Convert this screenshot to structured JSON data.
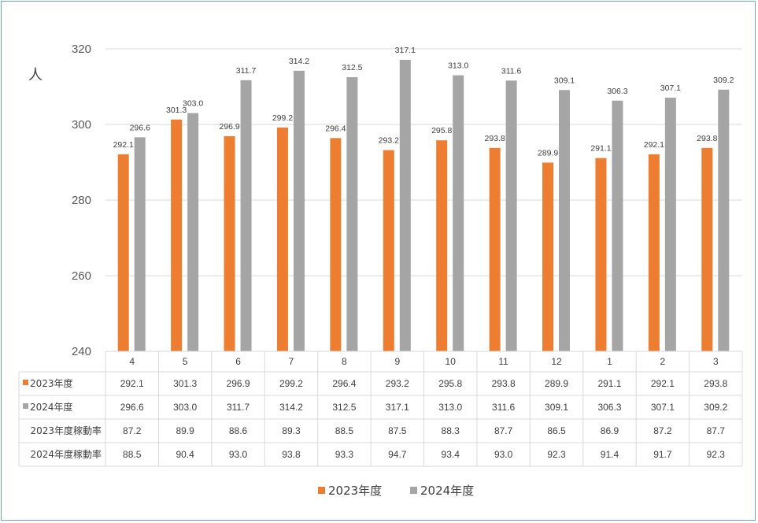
{
  "chart_data": {
    "type": "bar",
    "ylabel": "人",
    "ylim": [
      240,
      320
    ],
    "yticks": [
      240,
      260,
      280,
      300,
      320
    ],
    "grid": true,
    "categories": [
      "4",
      "5",
      "6",
      "7",
      "8",
      "9",
      "10",
      "11",
      "12",
      "1",
      "2",
      "3"
    ],
    "series": [
      {
        "name": "2023年度",
        "color": "#ed7d31",
        "values": [
          292.1,
          301.3,
          296.9,
          299.2,
          296.4,
          293.2,
          295.8,
          293.8,
          289.9,
          291.1,
          292.1,
          293.8
        ],
        "value_labels": [
          "292.1",
          "301.3",
          "296.9",
          "299.2",
          "296.4",
          "293.2",
          "295.8",
          "293.8",
          "289.9",
          "291.1",
          "292.1",
          "293.8"
        ]
      },
      {
        "name": "2024年度",
        "color": "#a5a5a5",
        "values": [
          296.6,
          303.0,
          311.7,
          314.2,
          312.5,
          317.1,
          313.0,
          311.6,
          309.1,
          306.3,
          307.1,
          309.2
        ],
        "value_labels": [
          "296.6",
          "303.0",
          "311.7",
          "314.2",
          "312.5",
          "317.1",
          "313.0",
          "311.6",
          "309.1",
          "306.3",
          "307.1",
          "309.2"
        ]
      }
    ],
    "table_rows": [
      {
        "label": "2023年度",
        "marker_color": "#ed7d31",
        "cells": [
          "292.1",
          "301.3",
          "296.9",
          "299.2",
          "296.4",
          "293.2",
          "295.8",
          "293.8",
          "289.9",
          "291.1",
          "292.1",
          "293.8"
        ]
      },
      {
        "label": "2024年度",
        "marker_color": "#a5a5a5",
        "cells": [
          "296.6",
          "303.0",
          "311.7",
          "314.2",
          "312.5",
          "317.1",
          "313.0",
          "311.6",
          "309.1",
          "306.3",
          "307.1",
          "309.2"
        ]
      },
      {
        "label": "2023年度稼動率",
        "marker_color": "",
        "cells": [
          "87.2",
          "89.9",
          "88.6",
          "89.3",
          "88.5",
          "87.5",
          "88.3",
          "87.7",
          "86.5",
          "86.9",
          "87.2",
          "87.7"
        ]
      },
      {
        "label": "2024年度稼動率",
        "marker_color": "",
        "cells": [
          "88.5",
          "90.4",
          "93.0",
          "93.8",
          "93.3",
          "94.7",
          "93.4",
          "93.0",
          "92.3",
          "91.4",
          "91.7",
          "92.3"
        ]
      }
    ],
    "legend": [
      {
        "name": "2023年度",
        "color": "#ed7d31"
      },
      {
        "name": "2024年度",
        "color": "#a5a5a5"
      }
    ],
    "legend_position": "bottom"
  }
}
